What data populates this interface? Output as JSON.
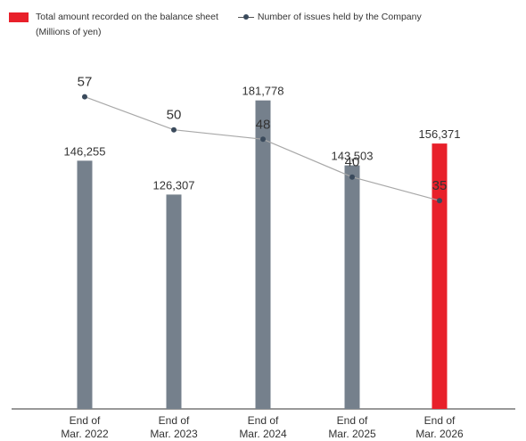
{
  "legend": {
    "bar_label": "Total amount recorded on the balance sheet",
    "line_label": "Number of issues held by the Company",
    "unit_label": "(Millions of yen)"
  },
  "colors": {
    "bar_default": "#75808c",
    "bar_highlight": "#e8202a",
    "line": "#a8a8a8",
    "point": "#3a4a5c",
    "axis": "#333333"
  },
  "chart_data": {
    "type": "bar",
    "categories": [
      [
        "End of",
        "Mar. 2022"
      ],
      [
        "End of",
        "Mar. 2023"
      ],
      [
        "End of",
        "Mar. 2024"
      ],
      [
        "End of",
        "Mar. 2025"
      ],
      [
        "End of",
        "Mar. 2026"
      ]
    ],
    "series": [
      {
        "name": "Total amount recorded on the balance sheet",
        "type": "bar",
        "values": [
          146255,
          126307,
          181778,
          143503,
          156371
        ],
        "labels": [
          "146,255",
          "126,307",
          "181,778",
          "143,503",
          "156,371"
        ],
        "highlight_index": 4
      },
      {
        "name": "Number of issues held by the Company",
        "type": "line",
        "values": [
          57,
          50,
          48,
          40,
          35
        ],
        "labels": [
          "57",
          "50",
          "48",
          "40",
          "35"
        ]
      }
    ],
    "bar_ylim": [
      0,
      200000
    ],
    "line_ylim": [
      -7,
      70
    ]
  }
}
